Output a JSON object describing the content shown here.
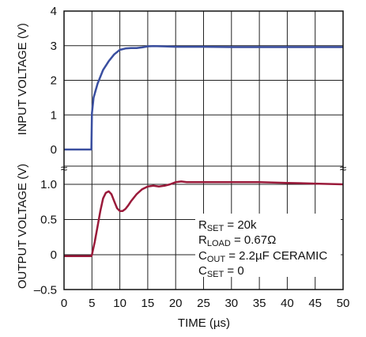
{
  "chart_data": [
    {
      "type": "line",
      "panel": "top",
      "ylabel": "INPUT VOLTAGE (V)",
      "xlim": [
        0,
        50
      ],
      "ylim": [
        0,
        4
      ],
      "yticks": [
        "0",
        "1",
        "2",
        "3",
        "4"
      ],
      "grid": true,
      "series": [
        {
          "color": "#3a4fa0",
          "x": [
            0,
            4.9,
            5.0,
            5.3,
            6,
            7,
            8,
            9,
            10,
            11,
            12,
            13,
            14,
            15,
            16,
            18,
            20,
            25,
            30,
            35,
            40,
            45,
            50
          ],
          "y": [
            0,
            0,
            1.05,
            1.5,
            1.9,
            2.3,
            2.55,
            2.75,
            2.88,
            2.92,
            2.93,
            2.93,
            2.95,
            2.98,
            2.99,
            2.98,
            2.97,
            2.97,
            2.96,
            2.96,
            2.96,
            2.96,
            2.96
          ]
        }
      ]
    },
    {
      "type": "line",
      "panel": "bottom",
      "ylabel": "OUTPUT VOLTAGE (V)",
      "xlabel": "TIME (µs)",
      "xlim": [
        0,
        50
      ],
      "ylim": [
        -0.5,
        1.2
      ],
      "xticks": [
        "0",
        "5",
        "10",
        "15",
        "20",
        "25",
        "30",
        "35",
        "40",
        "45",
        "50"
      ],
      "yticks": [
        "–0.5",
        "0",
        "0.5",
        "1.0"
      ],
      "grid": true,
      "series": [
        {
          "color": "#9a1a3a",
          "x": [
            0,
            4.9,
            5.0,
            5.5,
            6,
            6.5,
            7,
            7.5,
            8,
            8.5,
            9,
            9.5,
            10,
            10.5,
            11,
            11.5,
            12,
            13,
            14,
            15,
            16,
            17,
            18,
            19,
            20,
            21,
            22,
            25,
            30,
            35,
            40,
            45,
            50
          ],
          "y": [
            -0.02,
            -0.02,
            0.0,
            0.18,
            0.4,
            0.62,
            0.8,
            0.88,
            0.9,
            0.86,
            0.76,
            0.66,
            0.62,
            0.62,
            0.65,
            0.7,
            0.76,
            0.86,
            0.93,
            0.97,
            0.98,
            0.97,
            0.98,
            1.0,
            1.03,
            1.04,
            1.03,
            1.03,
            1.03,
            1.03,
            1.02,
            1.01,
            1.0
          ]
        }
      ]
    }
  ],
  "annotations": [
    {
      "main": "R",
      "sub": "SET",
      "rest": " = 20k"
    },
    {
      "main": "R",
      "sub": "LOAD",
      "rest": " = 0.67Ω"
    },
    {
      "main": "C",
      "sub": "OUT",
      "rest": " = 2.2µF CERAMIC"
    },
    {
      "main": "C",
      "sub": "SET",
      "rest": " = 0"
    }
  ],
  "break_marks": [
    "≈",
    "≈"
  ]
}
